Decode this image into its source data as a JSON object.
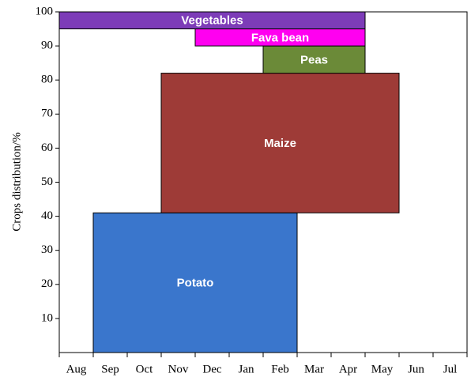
{
  "chart_data": {
    "type": "range",
    "y_label": "Crops distribution/%",
    "categories": [
      "Aug",
      "Sep",
      "Oct",
      "Nov",
      "Dec",
      "Jan",
      "Feb",
      "Mar",
      "Apr",
      "May",
      "Jun",
      "Jul"
    ],
    "xlim": [
      0,
      12
    ],
    "xticks": [
      0,
      1,
      2,
      3,
      4,
      5,
      6,
      7,
      8,
      9,
      10,
      11,
      12
    ],
    "ylim": [
      0,
      100
    ],
    "yticks": [
      10,
      20,
      30,
      40,
      50,
      60,
      70,
      80,
      90,
      100
    ],
    "series": [
      {
        "name": "Potato",
        "color": "#3a76cc",
        "x": [
          1,
          7
        ],
        "y": [
          0,
          41
        ]
      },
      {
        "name": "Maize",
        "color": "#9e3b37",
        "x": [
          3,
          10
        ],
        "y": [
          41,
          82
        ]
      },
      {
        "name": "Peas",
        "color": "#6b8a38",
        "x": [
          6,
          9
        ],
        "y": [
          82,
          90
        ]
      },
      {
        "name": "Fava bean",
        "color": "#ff00f0",
        "x": [
          4,
          9
        ],
        "y": [
          90,
          95
        ]
      },
      {
        "name": "Vegetables",
        "color": "#7d3cb8",
        "x": [
          0,
          9
        ],
        "y": [
          95,
          100
        ]
      }
    ]
  }
}
